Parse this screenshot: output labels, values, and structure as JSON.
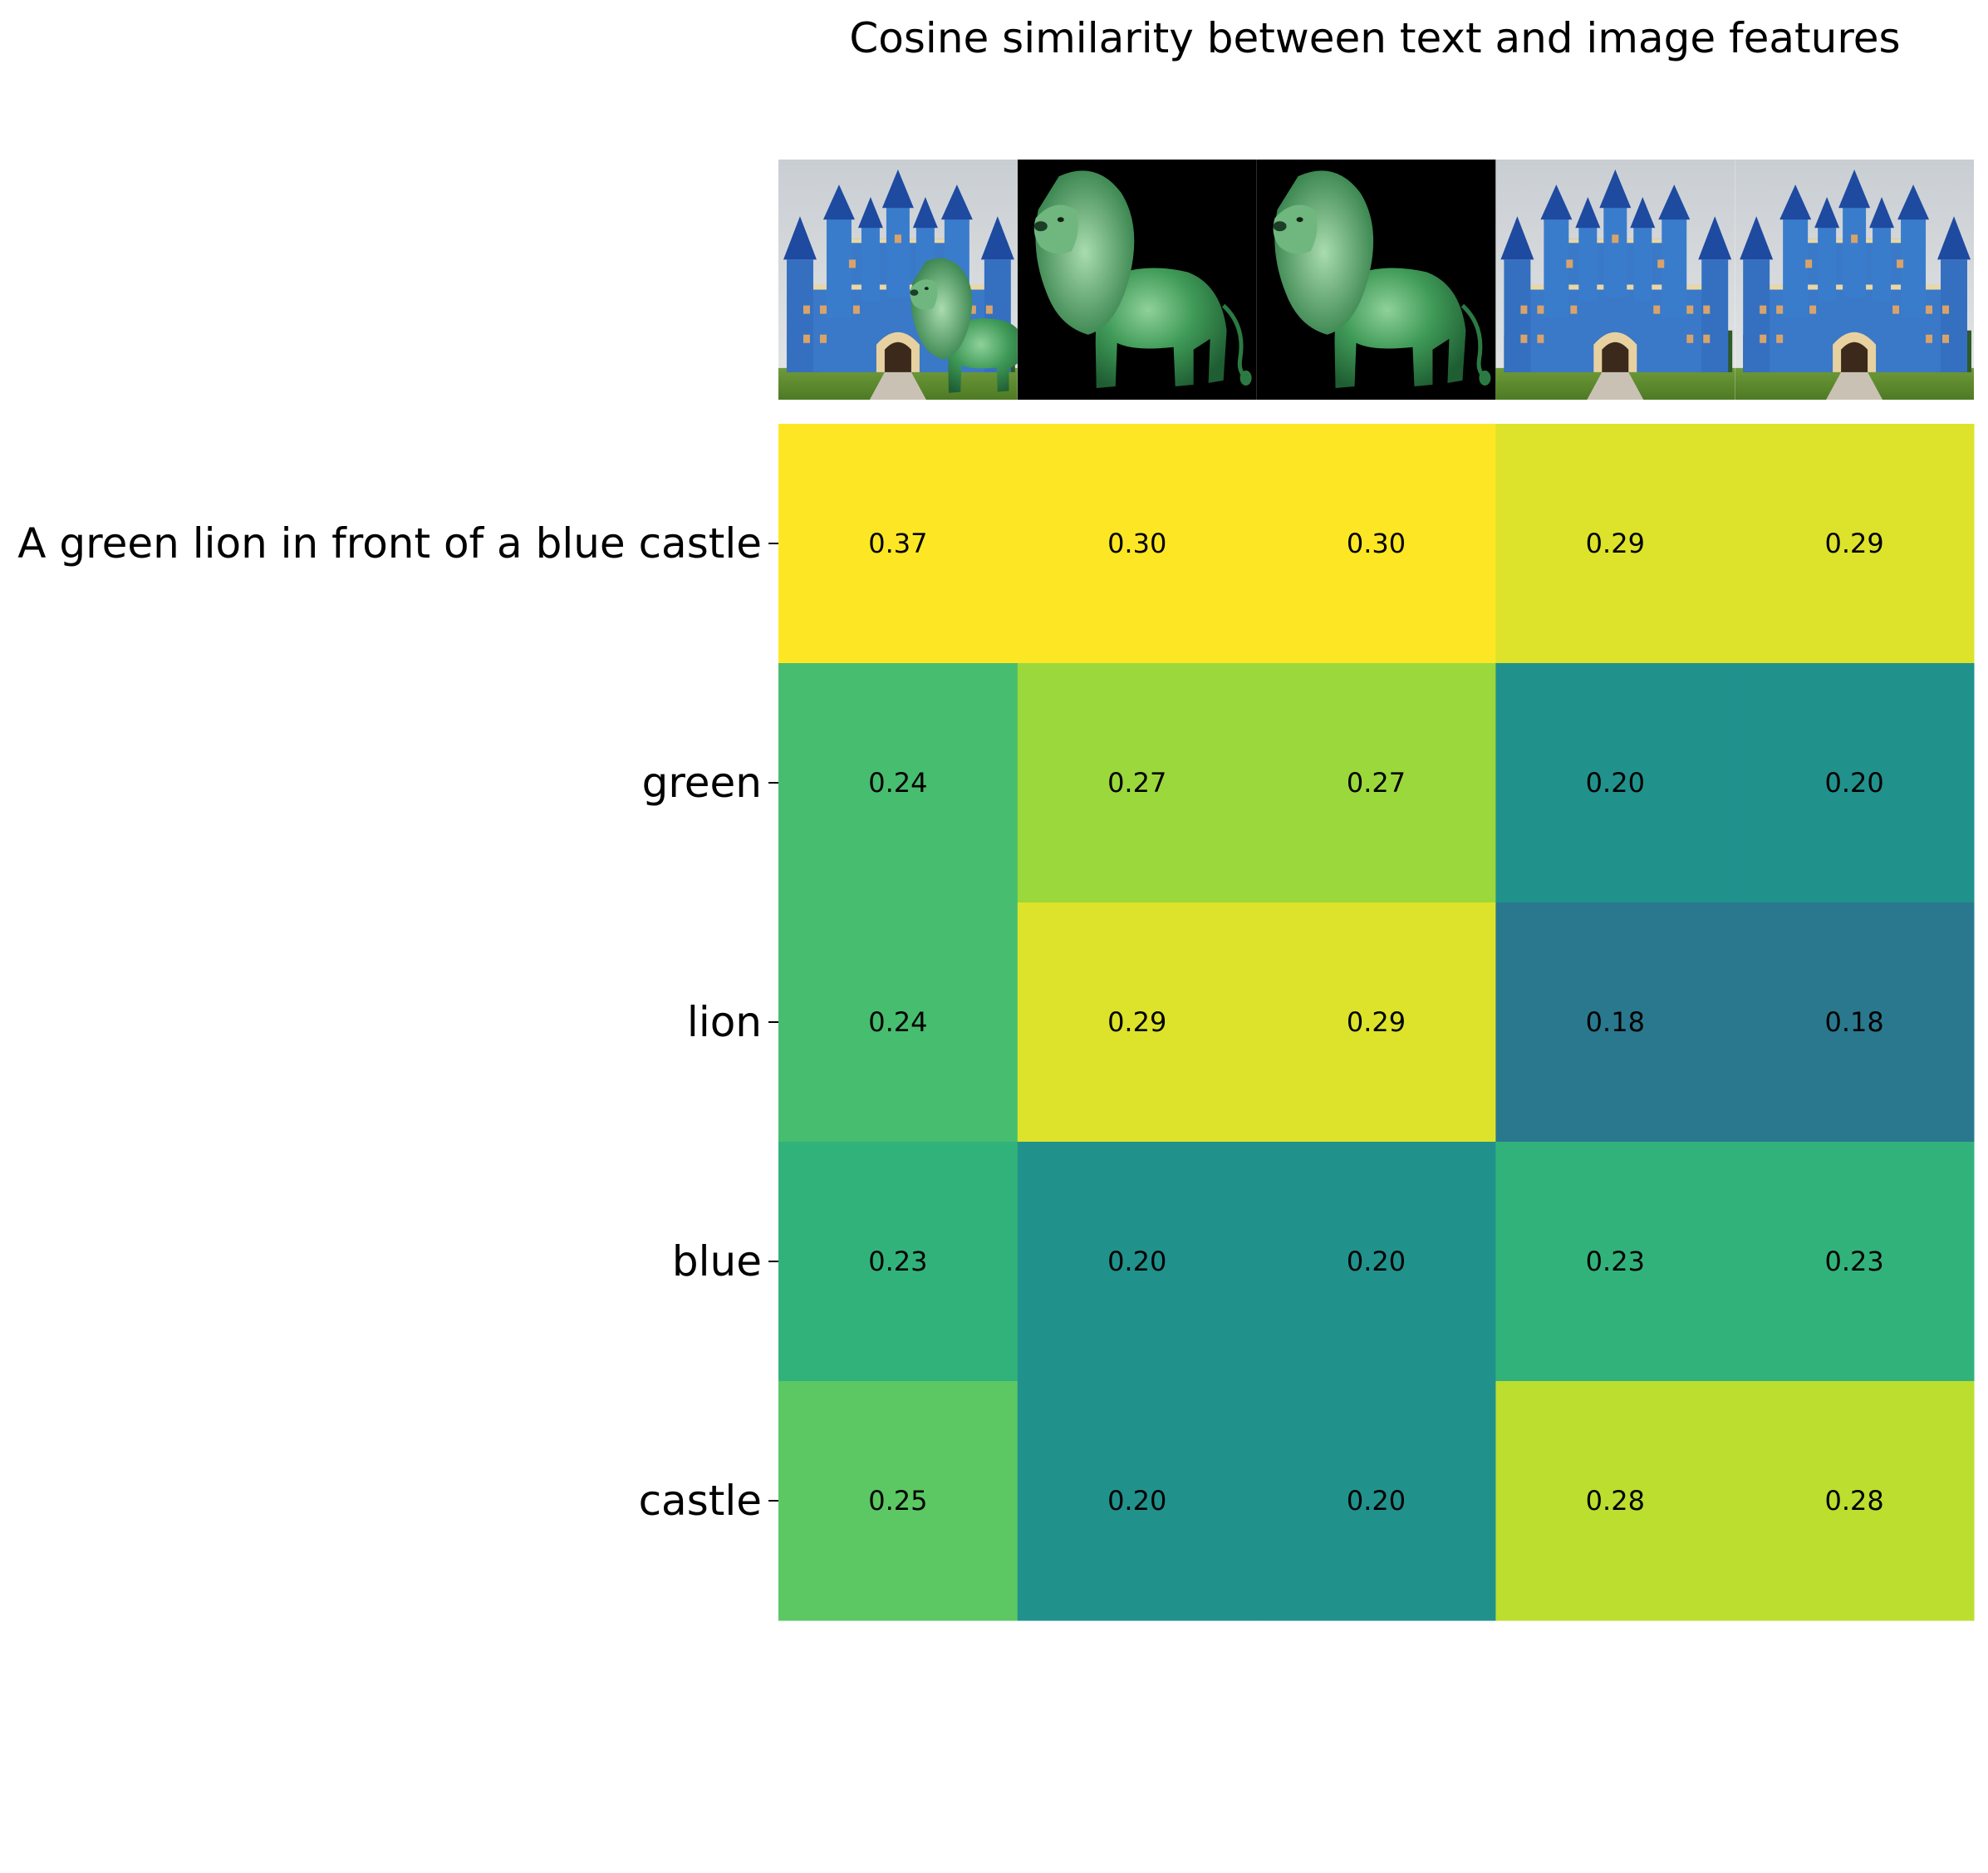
{
  "chart_data": {
    "type": "heatmap",
    "title": "Cosine similarity between text and image features",
    "rows": [
      "A green lion in front of a blue castle",
      "green",
      "lion",
      "blue",
      "castle"
    ],
    "columns": [
      {
        "image": "lion-in-front-of-castle"
      },
      {
        "image": "green-lion-on-black"
      },
      {
        "image": "green-lion-on-black"
      },
      {
        "image": "blue-castle"
      },
      {
        "image": "blue-castle"
      }
    ],
    "values": [
      [
        0.37,
        0.3,
        0.3,
        0.29,
        0.29
      ],
      [
        0.24,
        0.27,
        0.27,
        0.2,
        0.2
      ],
      [
        0.24,
        0.29,
        0.29,
        0.18,
        0.18
      ],
      [
        0.23,
        0.2,
        0.2,
        0.23,
        0.23
      ],
      [
        0.25,
        0.2,
        0.2,
        0.28,
        0.28
      ]
    ],
    "value_format": "2 decimals",
    "colormap": "viridis",
    "color_range": [
      0.1,
      0.3
    ],
    "grid": false,
    "legend": "none"
  }
}
